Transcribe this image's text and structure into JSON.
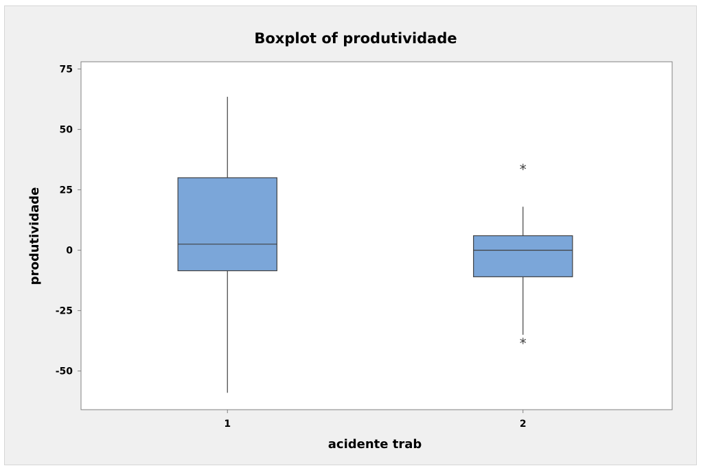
{
  "chart_data": {
    "type": "boxplot",
    "title": "Boxplot of produtividade",
    "xlabel": "acidente trab",
    "ylabel": "produtividade",
    "ylim": [
      -66,
      78
    ],
    "yticks": [
      -50,
      -25,
      0,
      25,
      50,
      75
    ],
    "ytick_labels": [
      "-50",
      "-25",
      "0",
      "25",
      "50",
      "75"
    ],
    "categories": [
      "1",
      "2"
    ],
    "grid": false,
    "box_color": "#7BA6D9",
    "line_color": "#404040",
    "boxes": [
      {
        "category": "1",
        "whisker_low": -59,
        "q1": -8.5,
        "median": 2.5,
        "q3": 30,
        "whisker_high": 63.5,
        "outliers": []
      },
      {
        "category": "2",
        "whisker_low": -35,
        "q1": -11,
        "median": 0,
        "q3": 6,
        "whisker_high": 18,
        "outliers": [
          34,
          -38
        ]
      }
    ]
  }
}
